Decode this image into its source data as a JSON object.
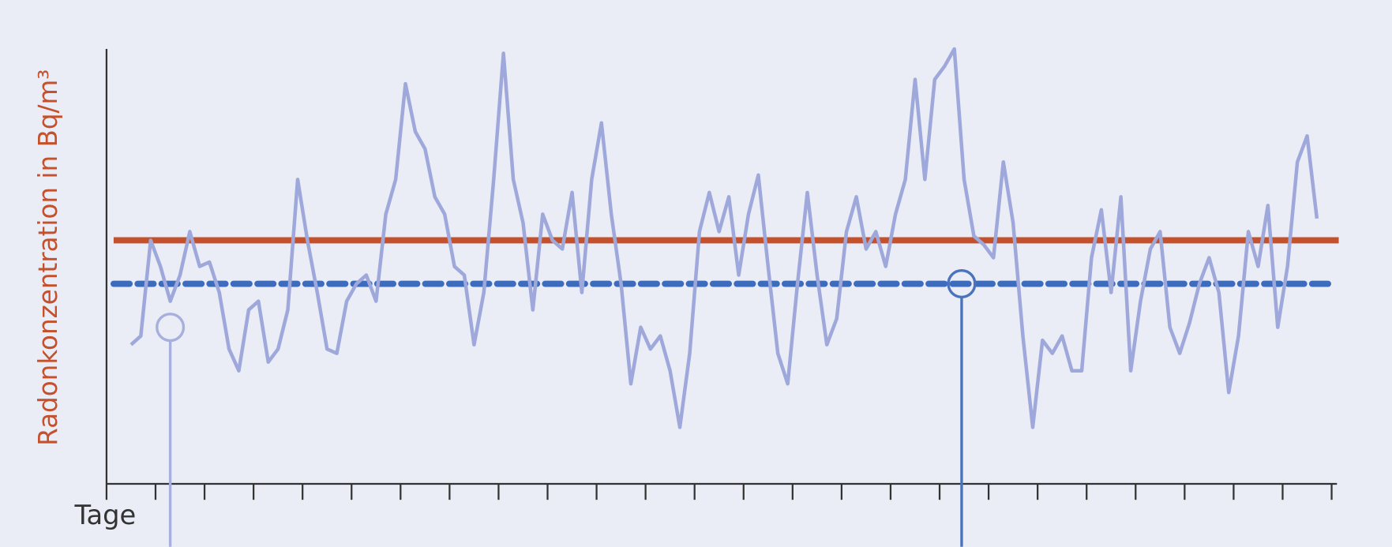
{
  "chart_data": {
    "type": "line",
    "y_label": "Radonkonzentration in Bq/m³",
    "x_label": "Tage",
    "xlim": [
      0,
      25
    ],
    "xticks": [
      0,
      1,
      2,
      3,
      4,
      5,
      6,
      7,
      8,
      9,
      10,
      11,
      12,
      13,
      14,
      15,
      16,
      17,
      18,
      19,
      20,
      21,
      22,
      23,
      24,
      25
    ],
    "ylim": [
      0,
      100
    ],
    "color": "#9ea8da",
    "x": [
      0.5,
      0.7,
      0.9,
      1.1,
      1.3,
      1.5,
      1.7,
      1.9,
      2.1,
      2.3,
      2.5,
      2.7,
      2.9,
      3.1,
      3.3,
      3.5,
      3.7,
      3.9,
      4.1,
      4.3,
      4.5,
      4.7,
      4.9,
      5.1,
      5.3,
      5.5,
      5.7,
      5.9,
      6.1,
      6.3,
      6.5,
      6.7,
      6.9,
      7.1,
      7.3,
      7.5,
      7.7,
      7.9,
      8.1,
      8.3,
      8.5,
      8.7,
      8.9,
      9.1,
      9.3,
      9.5,
      9.7,
      9.9,
      10.1,
      10.3,
      10.5,
      10.7,
      10.9,
      11.1,
      11.3,
      11.5,
      11.7,
      11.9,
      12.1,
      12.3,
      12.5,
      12.7,
      12.9,
      13.1,
      13.3,
      13.5,
      13.7,
      13.9,
      14.1,
      14.3,
      14.5,
      14.7,
      14.9,
      15.1,
      15.3,
      15.5,
      15.7,
      15.9,
      16.1,
      16.3,
      16.5,
      16.7,
      16.9,
      17.1,
      17.3,
      17.5,
      17.7,
      17.9,
      18.1,
      18.3,
      18.5,
      18.7,
      18.9,
      19.1,
      19.3,
      19.5,
      19.7,
      19.9,
      20.1,
      20.3,
      20.5,
      20.7,
      20.9,
      21.1,
      21.3,
      21.5,
      21.7,
      21.9,
      22.1,
      22.3,
      22.5,
      22.7,
      22.9,
      23.1,
      23.3,
      23.5,
      23.7,
      23.9,
      24.1,
      24.3,
      24.5,
      24.7
    ],
    "values": [
      32,
      34,
      56,
      50,
      42,
      48,
      58,
      50,
      51,
      44,
      31,
      26,
      40,
      42,
      28,
      31,
      40,
      70,
      56,
      44,
      31,
      30,
      42,
      46,
      48,
      42,
      62,
      70,
      92,
      81,
      77,
      66,
      62,
      50,
      48,
      32,
      44,
      70,
      99,
      70,
      60,
      40,
      62,
      56,
      54,
      67,
      44,
      70,
      83,
      62,
      46,
      23,
      36,
      31,
      34,
      26,
      13,
      30,
      58,
      67,
      58,
      66,
      48,
      62,
      71,
      50,
      30,
      23,
      46,
      67,
      48,
      32,
      38,
      58,
      66,
      54,
      58,
      50,
      62,
      70,
      93,
      70,
      93,
      96,
      100,
      70,
      57,
      55,
      52,
      74,
      60,
      34,
      13,
      33,
      30,
      34,
      26,
      26,
      52,
      63,
      44,
      66,
      26,
      42,
      54,
      58,
      36,
      30,
      37,
      46,
      52,
      44,
      21,
      34,
      58,
      50,
      64,
      36,
      50,
      74,
      80,
      61
    ],
    "reference_lines": [
      {
        "value": 56,
        "color": "#c4512b",
        "style": "solid"
      },
      {
        "value": 46,
        "color": "#3d6cbd",
        "style": "dashed"
      }
    ],
    "markers": [
      {
        "x": 1.3,
        "y": 36,
        "color": "#a7b0dc"
      },
      {
        "x": 17.45,
        "y": 46,
        "color": "#4a73bb"
      }
    ]
  }
}
